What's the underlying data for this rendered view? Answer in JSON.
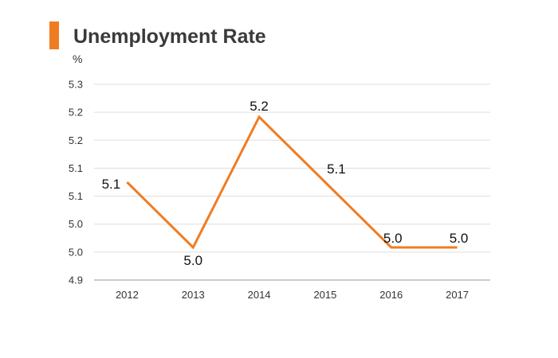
{
  "chart_data": {
    "type": "line",
    "title": "Unemployment Rate",
    "ylabel": "%",
    "xlabel": "",
    "categories": [
      "2012",
      "2013",
      "2014",
      "2015",
      "2016",
      "2017"
    ],
    "series": [
      {
        "values": [
          5.1,
          5.0,
          5.2,
          5.1,
          5.0,
          5.0
        ],
        "labels": [
          "5.1",
          "5.0",
          "5.2",
          "5.1",
          "5.0",
          "5.0"
        ],
        "color": "#f07c22"
      }
    ],
    "ylim": [
      4.95,
      5.25
    ],
    "yticks": [
      "4.9",
      "5.0",
      "5.0",
      "5.1",
      "5.1",
      "5.2",
      "5.2",
      "5.3"
    ],
    "grid": true,
    "legend": "none",
    "accent_color": "#f07c22"
  }
}
